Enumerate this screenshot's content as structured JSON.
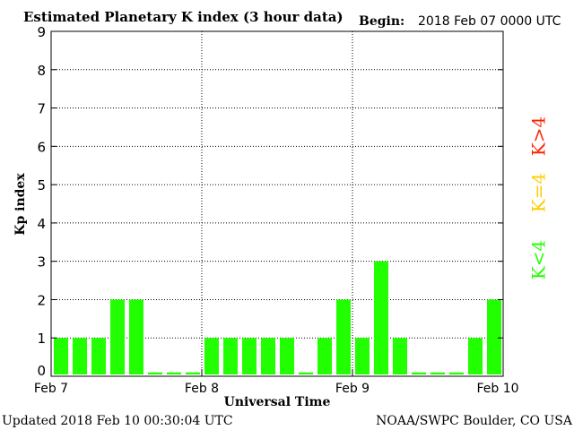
{
  "chart_data": {
    "type": "bar",
    "title": "Estimated Planetary K index (3 hour data)",
    "begin_label": "Begin:",
    "begin_value": "2018 Feb 07 0000 UTC",
    "ylabel": "Kp index",
    "xlabel": "Universal Time",
    "ylim": [
      0,
      9
    ],
    "yticks": [
      "0",
      "1",
      "2",
      "3",
      "4",
      "5",
      "6",
      "7",
      "8",
      "9"
    ],
    "xticks": [
      {
        "label": "Feb 7",
        "pos": 0
      },
      {
        "label": "Feb 8",
        "pos": 8
      },
      {
        "label": "Feb 9",
        "pos": 16
      },
      {
        "label": "Feb 10",
        "pos": 24
      }
    ],
    "grid": true,
    "values": [
      1,
      1,
      1,
      2,
      2,
      0,
      0,
      0,
      1,
      1,
      1,
      1,
      1,
      0,
      1,
      2,
      1,
      3,
      1,
      0,
      0,
      0,
      1,
      2
    ],
    "bar_color": "#22ff00",
    "legend": [
      {
        "label": "K>4",
        "color": "#ff2200"
      },
      {
        "label": "K=4",
        "color": "#ffcc00"
      },
      {
        "label": "K<4",
        "color": "#22ff00"
      }
    ]
  },
  "footer": {
    "updated": "Updated 2018 Feb 10 00:30:04 UTC",
    "credit": "NOAA/SWPC Boulder, CO USA"
  }
}
